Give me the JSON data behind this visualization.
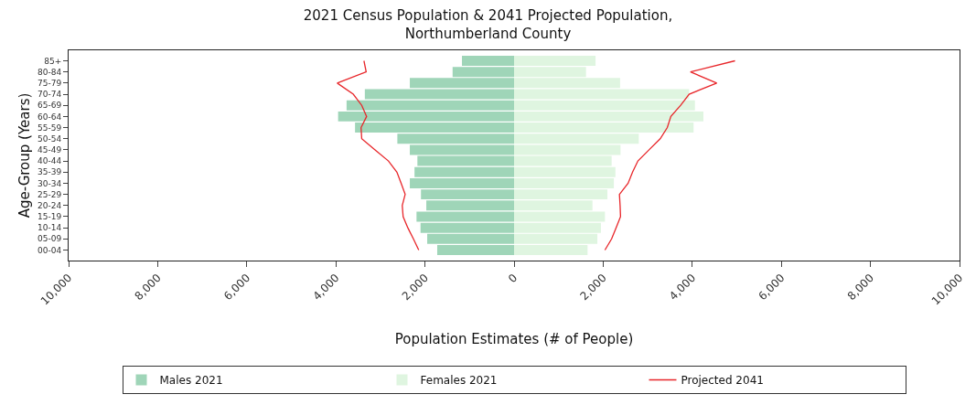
{
  "chart_data": {
    "type": "bar",
    "orientation": "horizontal",
    "title": "2021 Census Population & 2041 Projected Population,\nNorthumberland County",
    "xlabel": "Population Estimates (# of People)",
    "ylabel": "Age-Group (Years)",
    "categories": [
      "85+",
      "80-84",
      "75-79",
      "70-74",
      "65-69",
      "60-64",
      "55-59",
      "50-54",
      "45-49",
      "40-44",
      "35-39",
      "30-34",
      "25-29",
      "20-24",
      "15-19",
      "10-14",
      "05-09",
      "00-04"
    ],
    "series": [
      {
        "name": "Males 2021",
        "color": "#9fd5b8",
        "values": [
          -1170,
          -1380,
          -2340,
          -3350,
          -3760,
          -3950,
          -3570,
          -2620,
          -2340,
          -2170,
          -2235,
          -2340,
          -2090,
          -1970,
          -2190,
          -2100,
          -1950,
          -1725
        ]
      },
      {
        "name": "Females 2021",
        "color": "#dff5e0",
        "values": [
          1830,
          1615,
          2380,
          3930,
          4060,
          4250,
          4030,
          2800,
          2390,
          2190,
          2275,
          2240,
          2095,
          1760,
          2040,
          1950,
          1870,
          1650
        ]
      },
      {
        "type": "line",
        "color": "#e8262a",
        "values": [
          -3370,
          -3320,
          -3970,
          -3610,
          -3420,
          -3310,
          -3435,
          -3420,
          -3120,
          -2820,
          -2630,
          -2535,
          -2445,
          -2510,
          -2490,
          -2385,
          -2260,
          -2140
        ]
      },
      {
        "type": "line",
        "name": "Projected 2041",
        "color": "#e8262a",
        "values": [
          4960,
          3960,
          4550,
          3930,
          3740,
          3520,
          3440,
          3280,
          3030,
          2780,
          2660,
          2560,
          2365,
          2380,
          2390,
          2290,
          2190,
          2040
        ]
      }
    ],
    "xlim": [
      -10000,
      10000
    ],
    "xticks": [
      {
        "value": -10000,
        "label": "10,000"
      },
      {
        "value": -8000,
        "label": "8,000"
      },
      {
        "value": -6000,
        "label": "6,000"
      },
      {
        "value": -4000,
        "label": "4,000"
      },
      {
        "value": -2000,
        "label": "2,000"
      },
      0,
      {
        "value": 2000,
        "label": "2,000"
      },
      {
        "value": 4000,
        "label": "4,000"
      },
      {
        "value": 6000,
        "label": "6,000"
      },
      {
        "value": 8000,
        "label": "8,000"
      },
      {
        "value": 10000,
        "label": "10,000"
      }
    ],
    "stacked": true,
    "grid": false,
    "legend": "bottom",
    "marker": "none",
    "line_style": "solid"
  }
}
